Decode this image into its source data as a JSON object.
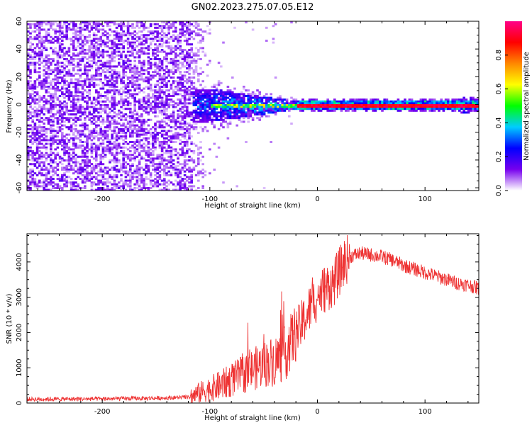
{
  "title": "GN02.2023.275.07.05.E12",
  "chart_data": [
    {
      "type": "heatmap",
      "xlabel": "Height of straight line (km)",
      "ylabel": "Frequency (Hz)",
      "xlim": [
        -270,
        150
      ],
      "ylim": [
        -62,
        60
      ],
      "x_ticks": [
        -200,
        -100,
        0,
        100
      ],
      "y_ticks": [
        -60,
        -40,
        -20,
        0,
        20,
        40,
        60
      ],
      "colorbar": {
        "label": "Normalized spectral amplitude",
        "range": [
          0,
          1
        ],
        "ticks": [
          0.0,
          0.2,
          0.4,
          0.6,
          0.8
        ],
        "tick_labels": [
          "0.0",
          "0.2",
          "0.4",
          "0.6",
          "0.8"
        ],
        "colors": [
          "#ffffff",
          "#7700ee",
          "#0000ff",
          "#00ccff",
          "#00ff00",
          "#ffff00",
          "#ff8800",
          "#ff0000",
          "#ff0088"
        ]
      },
      "features": [
        {
          "name": "broadband noise",
          "x_range": [
            -270,
            -118
          ],
          "freq_range": [
            -62,
            60
          ],
          "amplitude": 0.1
        },
        {
          "name": "converging band",
          "x_range": [
            -118,
            -20
          ],
          "freq_halfwidth_start": 12,
          "freq_halfwidth_end": 3,
          "amplitude": 0.35
        },
        {
          "name": "carrier line",
          "x_range": [
            -20,
            150
          ],
          "freq": 0,
          "amplitude": 0.9
        }
      ]
    },
    {
      "type": "line",
      "xlabel": "Height of straight line (km)",
      "ylabel": "SNR (10 * v/v)",
      "xlim": [
        -270,
        150
      ],
      "ylim": [
        0,
        4800
      ],
      "x_ticks": [
        -200,
        -100,
        0,
        100
      ],
      "y_ticks": [
        0,
        1000,
        2000,
        3000,
        4000
      ],
      "color": "#ee3333",
      "series": [
        {
          "x": [
            -270,
            -200,
            -150,
            -118,
            -105,
            -90,
            -80,
            -70,
            -60,
            -50,
            -40,
            -30,
            -22,
            -15,
            -10,
            -5,
            0,
            5,
            10,
            15,
            20,
            25,
            30,
            35,
            40,
            50,
            60,
            70,
            80,
            90,
            100,
            110,
            120,
            130,
            140,
            150
          ],
          "y": [
            120,
            130,
            150,
            180,
            350,
            500,
            650,
            800,
            950,
            1100,
            1200,
            1400,
            1900,
            2200,
            2500,
            2800,
            3000,
            3200,
            3300,
            3400,
            3700,
            4000,
            4150,
            4200,
            4250,
            4200,
            4150,
            4050,
            3900,
            3800,
            3700,
            3600,
            3500,
            3400,
            3350,
            3250
          ]
        }
      ]
    }
  ]
}
